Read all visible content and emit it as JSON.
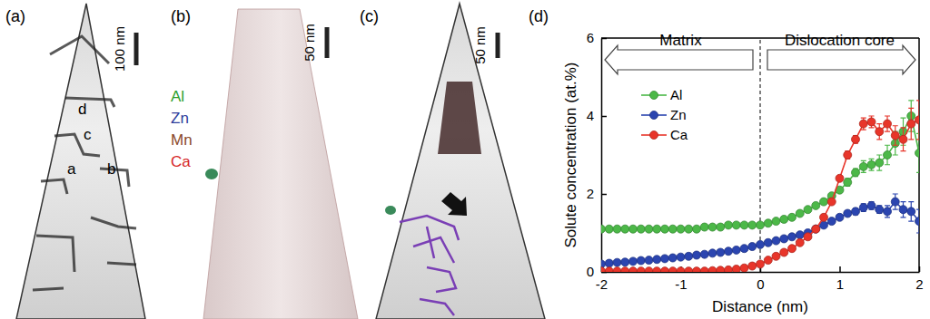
{
  "panels": [
    {
      "label": "(a)",
      "scale_bar": "100 nm",
      "annotations": [
        "d",
        "c",
        "a",
        "b"
      ]
    },
    {
      "label": "(b)",
      "scale_bar": "50 nm",
      "legend": [
        {
          "name": "Al",
          "color": "#2ca02c"
        },
        {
          "name": "Zn",
          "color": "#2e3d9c"
        },
        {
          "name": "Mn",
          "color": "#8b4a2b"
        },
        {
          "name": "Ca",
          "color": "#d62728"
        }
      ]
    },
    {
      "label": "(c)",
      "scale_bar": "50 nm"
    },
    {
      "label": "(d)"
    }
  ],
  "chart_data": {
    "type": "line",
    "x_label": "Distance (nm)",
    "y_label": "Solute concentration (at.%)",
    "xlim": [
      -2,
      2
    ],
    "xticks": [
      -2,
      -1,
      0,
      1,
      2
    ],
    "ylim": [
      0,
      6
    ],
    "yticks": [
      0,
      2,
      4,
      6
    ],
    "legend": "upper left",
    "reference_line": {
      "x": 0
    },
    "annotations": [
      {
        "text": "Matrix"
      },
      {
        "text": "Dislocation core"
      }
    ],
    "x": [
      -2,
      -1.9,
      -1.8,
      -1.7,
      -1.6,
      -1.5,
      -1.4,
      -1.3,
      -1.2,
      -1.1,
      -1,
      -0.9,
      -0.8,
      -0.7,
      -0.6,
      -0.5,
      -0.4,
      -0.3,
      -0.2,
      -0.1,
      0,
      0.1,
      0.2,
      0.3,
      0.4,
      0.5,
      0.6,
      0.7,
      0.8,
      0.9,
      1,
      1.1,
      1.2,
      1.3,
      1.4,
      1.5,
      1.6,
      1.7,
      1.8,
      1.9,
      2
    ],
    "series": [
      {
        "name": "Al",
        "color": "#4cb848",
        "marker": "circle",
        "line_style": "solid",
        "values": [
          1.1,
          1.1,
          1.1,
          1.1,
          1.1,
          1.1,
          1.1,
          1.1,
          1.1,
          1.1,
          1.1,
          1.1,
          1.1,
          1.15,
          1.15,
          1.15,
          1.2,
          1.2,
          1.2,
          1.2,
          1.2,
          1.25,
          1.3,
          1.35,
          1.4,
          1.5,
          1.6,
          1.7,
          1.8,
          1.95,
          2.1,
          2.3,
          2.55,
          2.7,
          2.75,
          2.8,
          3.0,
          3.3,
          3.6,
          4.0,
          3.05
        ],
        "errors": [
          0.05,
          0.05,
          0.05,
          0.05,
          0.05,
          0.05,
          0.05,
          0.05,
          0.05,
          0.05,
          0.05,
          0.05,
          0.05,
          0.05,
          0.05,
          0.05,
          0.05,
          0.05,
          0.05,
          0.05,
          0.05,
          0.05,
          0.05,
          0.05,
          0.05,
          0.05,
          0.05,
          0.05,
          0.05,
          0.05,
          0.05,
          0.1,
          0.1,
          0.15,
          0.15,
          0.2,
          0.25,
          0.3,
          0.35,
          0.4,
          0.5
        ]
      },
      {
        "name": "Zn",
        "color": "#2b45b0",
        "marker": "circle",
        "line_style": "solid",
        "values": [
          0.2,
          0.22,
          0.24,
          0.25,
          0.27,
          0.29,
          0.3,
          0.32,
          0.34,
          0.36,
          0.38,
          0.4,
          0.43,
          0.45,
          0.48,
          0.5,
          0.53,
          0.56,
          0.6,
          0.65,
          0.7,
          0.75,
          0.8,
          0.85,
          0.9,
          0.95,
          1.0,
          1.1,
          1.2,
          1.3,
          1.4,
          1.5,
          1.55,
          1.65,
          1.7,
          1.6,
          1.55,
          1.8,
          1.6,
          1.55,
          1.3
        ],
        "errors": [
          0.05,
          0.05,
          0.05,
          0.05,
          0.05,
          0.05,
          0.05,
          0.05,
          0.05,
          0.05,
          0.05,
          0.05,
          0.05,
          0.05,
          0.05,
          0.05,
          0.05,
          0.05,
          0.05,
          0.05,
          0.05,
          0.05,
          0.05,
          0.05,
          0.05,
          0.05,
          0.05,
          0.05,
          0.05,
          0.05,
          0.05,
          0.05,
          0.08,
          0.1,
          0.1,
          0.1,
          0.15,
          0.2,
          0.2,
          0.25,
          0.3
        ]
      },
      {
        "name": "Ca",
        "color": "#e8352a",
        "marker": "circle",
        "line_style": "solid",
        "values": [
          0.02,
          0.02,
          0.02,
          0.02,
          0.02,
          0.02,
          0.02,
          0.02,
          0.02,
          0.02,
          0.02,
          0.02,
          0.02,
          0.02,
          0.03,
          0.04,
          0.05,
          0.07,
          0.1,
          0.15,
          0.2,
          0.3,
          0.4,
          0.5,
          0.6,
          0.75,
          0.9,
          1.1,
          1.4,
          1.8,
          2.4,
          3.0,
          3.4,
          3.8,
          3.85,
          3.6,
          3.8,
          3.5,
          3.4,
          3.8,
          3.9
        ],
        "errors": [
          0.05,
          0.05,
          0.05,
          0.05,
          0.05,
          0.05,
          0.05,
          0.05,
          0.05,
          0.05,
          0.05,
          0.05,
          0.05,
          0.05,
          0.05,
          0.05,
          0.05,
          0.05,
          0.05,
          0.05,
          0.05,
          0.05,
          0.05,
          0.05,
          0.05,
          0.05,
          0.05,
          0.05,
          0.05,
          0.05,
          0.05,
          0.1,
          0.1,
          0.15,
          0.15,
          0.2,
          0.2,
          0.25,
          0.3,
          0.4,
          0.5
        ]
      }
    ]
  }
}
